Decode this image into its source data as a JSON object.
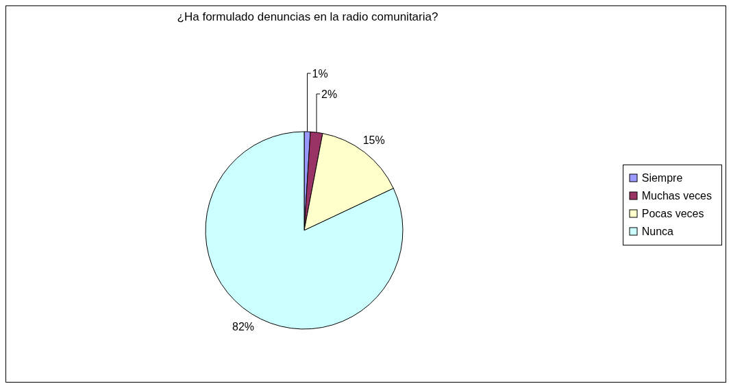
{
  "chart_data": {
    "type": "pie",
    "title": "¿Ha formulado denuncias en la radio comunitaria?",
    "categories": [
      "Siempre",
      "Muchas veces",
      "Pocas veces",
      "Nunca"
    ],
    "values": [
      1,
      2,
      15,
      82
    ],
    "colors": [
      "#9999ff",
      "#993366",
      "#ffffcc",
      "#ccffff"
    ],
    "value_labels": [
      "1%",
      "2%",
      "15%",
      "82%"
    ],
    "legend": "right"
  }
}
